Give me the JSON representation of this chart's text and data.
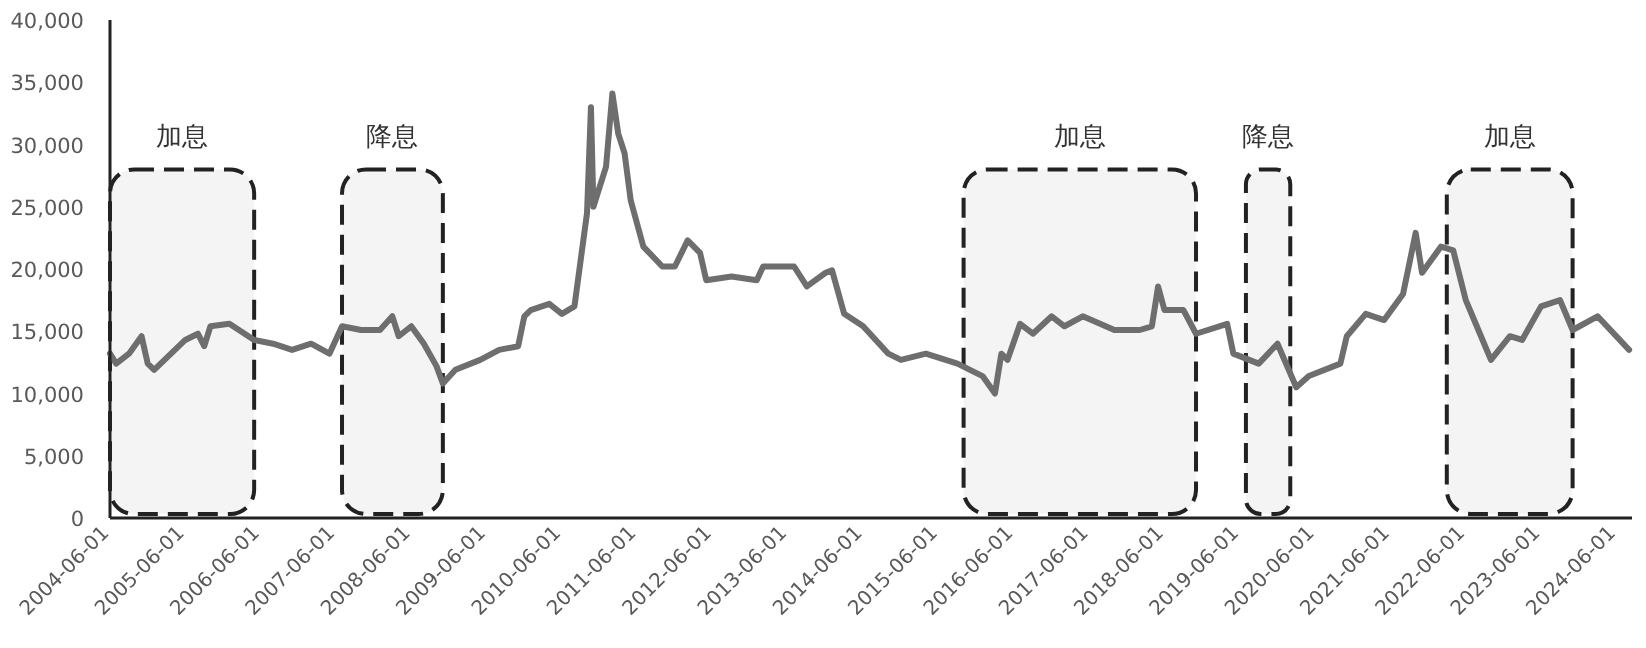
{
  "chart_data": {
    "type": "line",
    "x": [
      "2004-06",
      "2004-07",
      "2004-09",
      "2004-11",
      "2004-12",
      "2005-01",
      "2005-06",
      "2005-08",
      "2005-09",
      "2005-10",
      "2006-01",
      "2006-05",
      "2006-08",
      "2006-11",
      "2007-02",
      "2007-05",
      "2007-07",
      "2007-10",
      "2008-01",
      "2008-03",
      "2008-04",
      "2008-06",
      "2008-08",
      "2008-10",
      "2008-11",
      "2009-01",
      "2009-05",
      "2009-08",
      "2009-11",
      "2009-12",
      "2010-01",
      "2010-04",
      "2010-06",
      "2010-08",
      "2010-10",
      "2010-10-20",
      "2010-11",
      "2011-01",
      "2011-02",
      "2011-03",
      "2011-04",
      "2011-05",
      "2011-07",
      "2011-10",
      "2011-12",
      "2012-02",
      "2012-04",
      "2012-05",
      "2012-09",
      "2013-01",
      "2013-02",
      "2013-07",
      "2013-09",
      "2013-12",
      "2014-01",
      "2014-03",
      "2014-06",
      "2014-10",
      "2014-12",
      "2015-04",
      "2015-09",
      "2016-01",
      "2016-03",
      "2016-04",
      "2016-05",
      "2016-07",
      "2016-09",
      "2016-12",
      "2017-02",
      "2017-05",
      "2017-10",
      "2018-02",
      "2018-04",
      "2018-05",
      "2018-06",
      "2018-09",
      "2018-11",
      "2019-04",
      "2019-05",
      "2019-09",
      "2019-12",
      "2020-03",
      "2020-05",
      "2020-10",
      "2020-11",
      "2021-02",
      "2021-05",
      "2021-08",
      "2021-10",
      "2021-11",
      "2022-02",
      "2022-04",
      "2022-06",
      "2022-08",
      "2022-10",
      "2023-01",
      "2023-03",
      "2023-06",
      "2023-09",
      "2023-11",
      "2024-03",
      "2024-08"
    ],
    "series": [
      {
        "color": "#6e6e6e",
        "values": [
          13200,
          12400,
          13200,
          14600,
          12400,
          11900,
          14300,
          14800,
          13800,
          15400,
          15600,
          14300,
          14000,
          13500,
          14000,
          13200,
          15400,
          15100,
          15100,
          16200,
          14600,
          15400,
          14000,
          12200,
          10800,
          11900,
          12700,
          13500,
          13800,
          16200,
          16700,
          17200,
          16400,
          17000,
          24500,
          33000,
          25000,
          28200,
          34100,
          30900,
          29300,
          25500,
          21800,
          20200,
          20200,
          22300,
          21300,
          19100,
          19400,
          19100,
          20200,
          20200,
          18600,
          19700,
          19900,
          16400,
          15400,
          13200,
          12700,
          13200,
          12400,
          11400,
          10000,
          13200,
          12700,
          15600,
          14800,
          16200,
          15400,
          16200,
          15100,
          15100,
          15400,
          18600,
          16700,
          16700,
          14800,
          15600,
          13200,
          12400,
          14000,
          10500,
          11400,
          12400,
          14600,
          16400,
          15900,
          18000,
          22900,
          19700,
          21800,
          21500,
          17500,
          15100,
          12700,
          14600,
          14300,
          17000,
          17500,
          15100,
          16200,
          13500
        ]
      }
    ],
    "xlim": [
      "2004-06-01",
      "2024-08-15"
    ],
    "xticks": [
      {
        "value": "2004-06-01",
        "label": "2004-06-01"
      },
      {
        "value": "2005-06-01",
        "label": "2005-06-01"
      },
      {
        "value": "2006-06-01",
        "label": "2006-06-01"
      },
      {
        "value": "2007-06-01",
        "label": "2007-06-01"
      },
      {
        "value": "2008-06-01",
        "label": "2008-06-01"
      },
      {
        "value": "2009-06-01",
        "label": "2009-06-01"
      },
      {
        "value": "2010-06-01",
        "label": "2010-06-01"
      },
      {
        "value": "2011-06-01",
        "label": "2011-06-01"
      },
      {
        "value": "2012-06-01",
        "label": "2012-06-01"
      },
      {
        "value": "2013-06-01",
        "label": "2013-06-01"
      },
      {
        "value": "2014-06-01",
        "label": "2014-06-01"
      },
      {
        "value": "2015-06-01",
        "label": "2015-06-01"
      },
      {
        "value": "2016-06-01",
        "label": "2016-06-01"
      },
      {
        "value": "2017-06-01",
        "label": "2017-06-01"
      },
      {
        "value": "2018-06-01",
        "label": "2018-06-01"
      },
      {
        "value": "2019-06-01",
        "label": "2019-06-01"
      },
      {
        "value": "2020-06-01",
        "label": "2020-06-01"
      },
      {
        "value": "2021-06-01",
        "label": "2021-06-01"
      },
      {
        "value": "2022-06-01",
        "label": "2022-06-01"
      },
      {
        "value": "2023-06-01",
        "label": "2023-06-01"
      },
      {
        "value": "2024-06-01",
        "label": "2024-06-01"
      }
    ],
    "ylim": [
      0,
      40000
    ],
    "yticks": [
      0,
      {
        "value": 5000,
        "label": "5,000"
      },
      {
        "value": 10000,
        "label": "10,000"
      },
      {
        "value": 15000,
        "label": "15,000"
      },
      {
        "value": 20000,
        "label": "20,000"
      },
      {
        "value": 25000,
        "label": "25,000"
      },
      {
        "value": 30000,
        "label": "30,000"
      },
      {
        "value": 35000,
        "label": "35,000"
      },
      {
        "value": 40000,
        "label": "40,000"
      }
    ],
    "bands": [
      {
        "axis": "x",
        "from": "2004-06",
        "to": "2006-05",
        "label": "加息",
        "color": "#222222"
      },
      {
        "axis": "x",
        "from": "2007-07",
        "to": "2008-11",
        "label": "降息",
        "color": "#222222"
      },
      {
        "axis": "x",
        "from": "2015-10",
        "to": "2018-11",
        "label": "加息",
        "color": "#222222"
      },
      {
        "axis": "x",
        "from": "2019-07",
        "to": "2020-02",
        "label": "降息",
        "color": "#222222"
      },
      {
        "axis": "x",
        "from": "2022-03",
        "to": "2023-11",
        "label": "加息",
        "color": "#222222"
      }
    ],
    "grid": false,
    "marker": "none",
    "line_style": "solid"
  }
}
